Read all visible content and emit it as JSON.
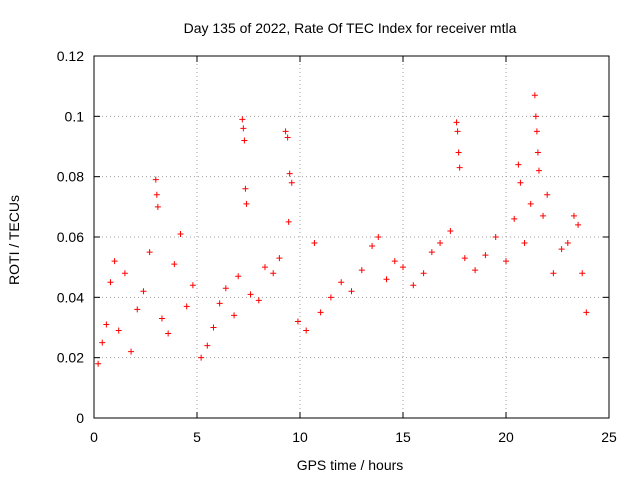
{
  "chart_data": {
    "type": "scatter",
    "title": "Day 135 of 2022, Rate Of TEC Index for receiver mtla",
    "xlabel": "GPS time / hours",
    "ylabel": "ROTI / TECUs",
    "xlim": [
      0,
      25
    ],
    "ylim": [
      0,
      0.12
    ],
    "xticks": [
      "0",
      "5",
      "10",
      "15",
      "20",
      "25"
    ],
    "yticks": [
      "0",
      "0.02",
      "0.04",
      "0.06",
      "0.08",
      "0.1",
      "0.12"
    ],
    "grid": true,
    "marker": "+",
    "color": "#ff0000",
    "series": [
      {
        "points": [
          [
            0.2,
            0.018
          ],
          [
            0.4,
            0.025
          ],
          [
            0.6,
            0.031
          ],
          [
            0.8,
            0.045
          ],
          [
            1.0,
            0.052
          ],
          [
            1.2,
            0.029
          ],
          [
            1.5,
            0.048
          ],
          [
            1.8,
            0.022
          ],
          [
            2.1,
            0.036
          ],
          [
            2.4,
            0.042
          ],
          [
            2.7,
            0.055
          ],
          [
            3.0,
            0.079
          ],
          [
            3.05,
            0.074
          ],
          [
            3.1,
            0.07
          ],
          [
            3.3,
            0.033
          ],
          [
            3.6,
            0.028
          ],
          [
            3.9,
            0.051
          ],
          [
            4.2,
            0.061
          ],
          [
            4.5,
            0.037
          ],
          [
            4.8,
            0.044
          ],
          [
            5.2,
            0.02
          ],
          [
            5.5,
            0.024
          ],
          [
            5.8,
            0.03
          ],
          [
            6.1,
            0.038
          ],
          [
            6.4,
            0.043
          ],
          [
            6.8,
            0.034
          ],
          [
            7.0,
            0.047
          ],
          [
            7.2,
            0.099
          ],
          [
            7.25,
            0.096
          ],
          [
            7.3,
            0.092
          ],
          [
            7.35,
            0.076
          ],
          [
            7.4,
            0.071
          ],
          [
            7.6,
            0.041
          ],
          [
            8.0,
            0.039
          ],
          [
            8.3,
            0.05
          ],
          [
            8.7,
            0.048
          ],
          [
            9.0,
            0.053
          ],
          [
            9.3,
            0.095
          ],
          [
            9.4,
            0.093
          ],
          [
            9.45,
            0.065
          ],
          [
            9.5,
            0.081
          ],
          [
            9.6,
            0.078
          ],
          [
            9.9,
            0.032
          ],
          [
            10.3,
            0.029
          ],
          [
            10.7,
            0.058
          ],
          [
            11.0,
            0.035
          ],
          [
            11.5,
            0.04
          ],
          [
            12.0,
            0.045
          ],
          [
            12.5,
            0.042
          ],
          [
            13.0,
            0.049
          ],
          [
            13.5,
            0.057
          ],
          [
            13.8,
            0.06
          ],
          [
            14.2,
            0.046
          ],
          [
            14.6,
            0.052
          ],
          [
            15.0,
            0.05
          ],
          [
            15.5,
            0.044
          ],
          [
            16.0,
            0.048
          ],
          [
            16.4,
            0.055
          ],
          [
            16.8,
            0.058
          ],
          [
            17.3,
            0.062
          ],
          [
            17.6,
            0.098
          ],
          [
            17.65,
            0.095
          ],
          [
            17.7,
            0.088
          ],
          [
            17.75,
            0.083
          ],
          [
            18.0,
            0.053
          ],
          [
            18.5,
            0.049
          ],
          [
            19.0,
            0.054
          ],
          [
            19.5,
            0.06
          ],
          [
            20.0,
            0.052
          ],
          [
            20.4,
            0.066
          ],
          [
            20.6,
            0.084
          ],
          [
            20.7,
            0.078
          ],
          [
            20.9,
            0.058
          ],
          [
            21.2,
            0.071
          ],
          [
            21.4,
            0.107
          ],
          [
            21.45,
            0.1
          ],
          [
            21.5,
            0.095
          ],
          [
            21.55,
            0.088
          ],
          [
            21.6,
            0.082
          ],
          [
            21.8,
            0.067
          ],
          [
            22.0,
            0.074
          ],
          [
            22.3,
            0.048
          ],
          [
            22.7,
            0.056
          ],
          [
            23.0,
            0.058
          ],
          [
            23.3,
            0.067
          ],
          [
            23.5,
            0.064
          ],
          [
            23.7,
            0.048
          ],
          [
            23.9,
            0.035
          ]
        ]
      }
    ]
  }
}
